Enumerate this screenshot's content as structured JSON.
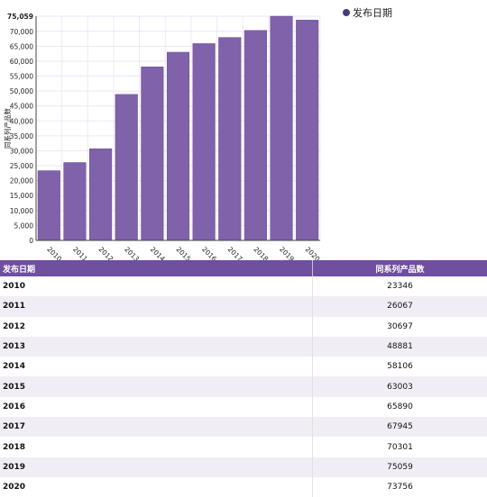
{
  "chart_data": {
    "type": "bar",
    "categories": [
      "2010",
      "2011",
      "2012",
      "2013",
      "2014",
      "2015",
      "2016",
      "2017",
      "2018",
      "2019",
      "2020"
    ],
    "series": [
      {
        "name": "发布日期",
        "values": [
          23346,
          26067,
          30697,
          48881,
          58106,
          63003,
          65890,
          67945,
          70301,
          75059,
          73756
        ]
      }
    ],
    "ylabel": "同系列产品数",
    "ylim": [
      0,
      75059
    ],
    "yticks": [
      "0",
      "5,000",
      "10,000",
      "15,000",
      "20,000",
      "25,000",
      "30,000",
      "35,000",
      "40,000",
      "45,000",
      "50,000",
      "55,000",
      "60,000",
      "65,000",
      "70,000",
      "75,059"
    ],
    "ytick_values": [
      0,
      5000,
      10000,
      15000,
      20000,
      25000,
      30000,
      35000,
      40000,
      45000,
      50000,
      55000,
      60000,
      65000,
      70000,
      75059
    ],
    "grid": true,
    "legend_position": "top-right",
    "bar_color": "#7f62aa"
  },
  "table": {
    "headers": [
      "发布日期",
      "同系列产品数"
    ],
    "rows": [
      [
        "2010",
        "23346"
      ],
      [
        "2011",
        "26067"
      ],
      [
        "2012",
        "30697"
      ],
      [
        "2013",
        "48881"
      ],
      [
        "2014",
        "58106"
      ],
      [
        "2015",
        "63003"
      ],
      [
        "2016",
        "65890"
      ],
      [
        "2017",
        "67945"
      ],
      [
        "2018",
        "70301"
      ],
      [
        "2019",
        "75059"
      ],
      [
        "2020",
        "73756"
      ]
    ]
  }
}
